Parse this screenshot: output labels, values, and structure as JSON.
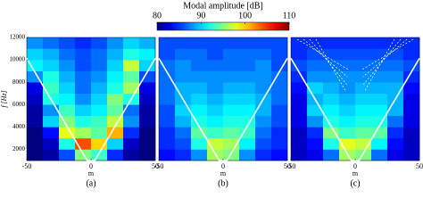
{
  "chart_data": [
    {
      "type": "heatmap",
      "panel_label": "(a)",
      "xlabel": "m",
      "ylabel": "f [Hz]",
      "xlim": [
        -50,
        50
      ],
      "xticks": [
        -50,
        0,
        50
      ],
      "ylim": [
        1000,
        12000
      ],
      "yticks": [
        2000,
        4000,
        6000,
        8000,
        10000,
        12000
      ],
      "colorbar": {
        "title": "Modal amplitude [dB]",
        "lim": [
          80,
          110
        ],
        "ticks": [
          80,
          90,
          100,
          110
        ]
      },
      "x": [
        -43.75,
        -31.25,
        -18.75,
        -6.25,
        6.25,
        18.75,
        31.25,
        43.75
      ],
      "y": [
        1500,
        2500,
        3500,
        4500,
        5500,
        6500,
        7500,
        8500,
        9500,
        10500,
        11500
      ],
      "values": [
        [
          80,
          81,
          86,
          95,
          93,
          85,
          81,
          80
        ],
        [
          80,
          82,
          92,
          104,
          100,
          90,
          82,
          80
        ],
        [
          80,
          84,
          98,
          96,
          94,
          101,
          85,
          80
        ],
        [
          81,
          90,
          95,
          92,
          93,
          97,
          88,
          81
        ],
        [
          81,
          88,
          93,
          90,
          91,
          94,
          87,
          81
        ],
        [
          82,
          92,
          91,
          88,
          90,
          95,
          92,
          82
        ],
        [
          83,
          93,
          90,
          87,
          89,
          92,
          96,
          83
        ],
        [
          88,
          92,
          89,
          87,
          88,
          91,
          94,
          86
        ],
        [
          91,
          90,
          88,
          86,
          87,
          90,
          97,
          90
        ],
        [
          90,
          89,
          87,
          86,
          87,
          89,
          92,
          91
        ],
        [
          88,
          87,
          86,
          85,
          86,
          88,
          90,
          89
        ]
      ]
    },
    {
      "type": "heatmap",
      "panel_label": "(b)",
      "xlabel": "m",
      "xlim": [
        -50,
        50
      ],
      "xticks": [
        -50,
        0,
        50
      ],
      "ylim": [
        1000,
        12000
      ],
      "x": [
        -43.75,
        -31.25,
        -18.75,
        -6.25,
        6.25,
        18.75,
        31.25,
        43.75
      ],
      "y": [
        1500,
        2500,
        3500,
        4500,
        5500,
        6500,
        7500,
        8500,
        9500,
        10500,
        11500
      ],
      "values": [
        [
          84,
          85,
          88,
          96,
          95,
          88,
          85,
          84
        ],
        [
          85,
          86,
          92,
          97,
          96,
          91,
          86,
          85
        ],
        [
          85,
          87,
          94,
          93,
          94,
          93,
          87,
          85
        ],
        [
          86,
          89,
          92,
          91,
          92,
          92,
          88,
          86
        ],
        [
          86,
          90,
          91,
          90,
          91,
          91,
          89,
          86
        ],
        [
          87,
          89,
          90,
          89,
          90,
          90,
          89,
          87
        ],
        [
          87,
          89,
          89,
          88,
          89,
          89,
          88,
          87
        ],
        [
          87,
          88,
          88,
          88,
          88,
          88,
          88,
          87
        ],
        [
          87,
          88,
          87,
          87,
          87,
          87,
          88,
          86
        ],
        [
          86,
          87,
          87,
          86,
          87,
          87,
          87,
          86
        ],
        [
          86,
          86,
          86,
          86,
          86,
          86,
          86,
          86
        ]
      ]
    },
    {
      "type": "heatmap",
      "panel_label": "(c)",
      "xlabel": "m",
      "xlim": [
        -50,
        50
      ],
      "xticks": [
        -50,
        0,
        50
      ],
      "ylim": [
        1000,
        12000
      ],
      "x": [
        -43.75,
        -31.25,
        -18.75,
        -6.25,
        6.25,
        18.75,
        31.25,
        43.75
      ],
      "y": [
        1500,
        2500,
        3500,
        4500,
        5500,
        6500,
        7500,
        8500,
        9500,
        10500,
        11500
      ],
      "values": [
        [
          82,
          83,
          87,
          96,
          95,
          87,
          83,
          82
        ],
        [
          82,
          84,
          92,
          98,
          97,
          91,
          84,
          82
        ],
        [
          82,
          85,
          95,
          93,
          94,
          94,
          85,
          82
        ],
        [
          83,
          88,
          92,
          91,
          92,
          92,
          87,
          83
        ],
        [
          83,
          90,
          91,
          90,
          91,
          91,
          89,
          83
        ],
        [
          83,
          89,
          90,
          89,
          90,
          90,
          89,
          83
        ],
        [
          84,
          90,
          89,
          88,
          89,
          89,
          89,
          84
        ],
        [
          85,
          88,
          88,
          88,
          88,
          88,
          88,
          85
        ],
        [
          86,
          87,
          87,
          87,
          87,
          87,
          87,
          86
        ],
        [
          85,
          86,
          86,
          86,
          86,
          86,
          86,
          85
        ],
        [
          85,
          85,
          85,
          85,
          85,
          85,
          85,
          85
        ]
      ]
    }
  ]
}
